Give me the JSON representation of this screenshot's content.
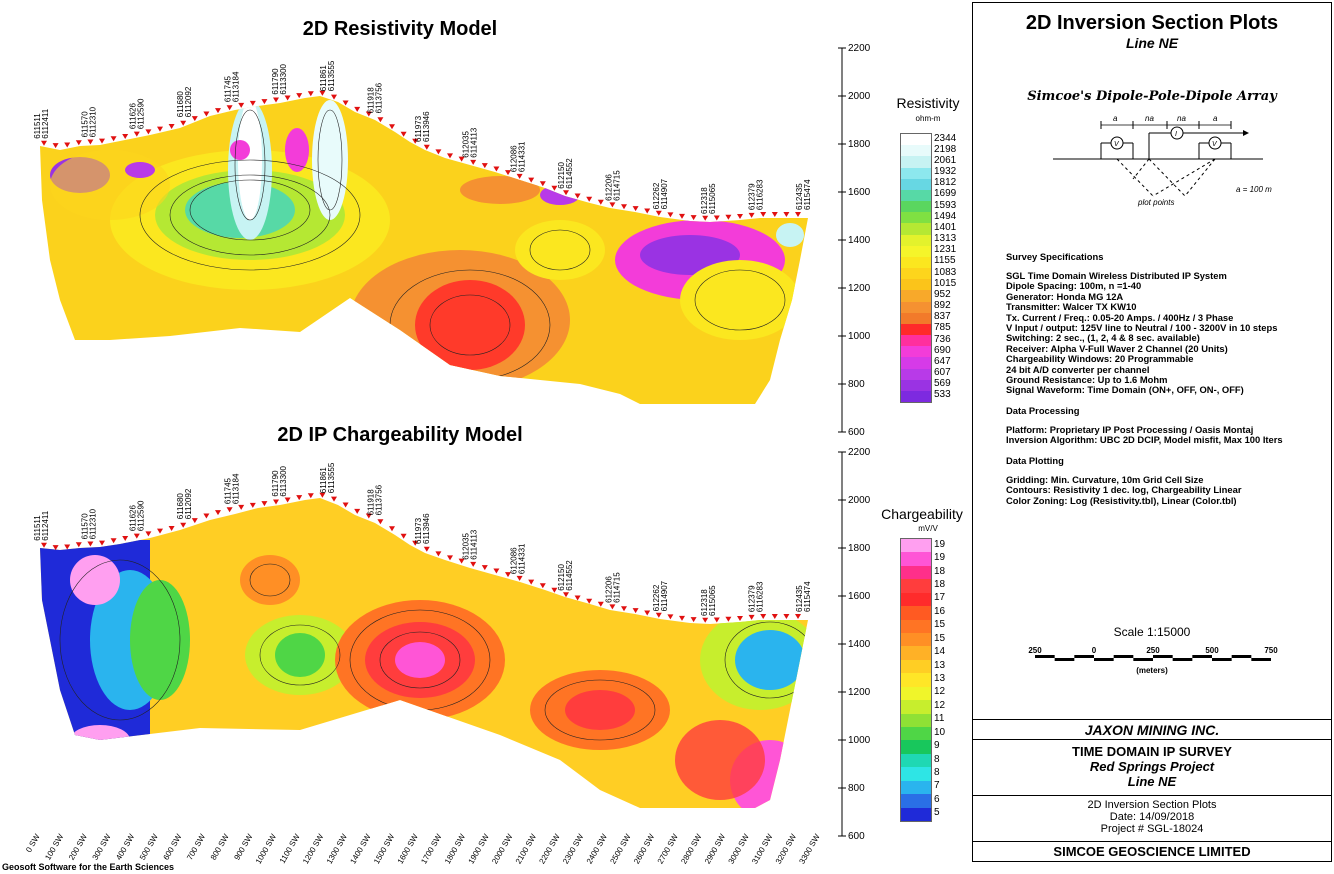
{
  "resistivity": {
    "title": "2D Resistivity Model",
    "legend_title": "Resistivity",
    "legend_unit": "ohm-m",
    "legend_values": [
      "2344",
      "2198",
      "2061",
      "1932",
      "1812",
      "1699",
      "1593",
      "1494",
      "1401",
      "1313",
      "1231",
      "1155",
      "1083",
      "1015",
      "952",
      "892",
      "837",
      "785",
      "736",
      "690",
      "647",
      "607",
      "569",
      "533"
    ],
    "legend_colors": [
      "#ffffff",
      "#e8fbfb",
      "#c7f3f3",
      "#8de8ee",
      "#67d7e3",
      "#57d9a6",
      "#5ad65f",
      "#7fe042",
      "#b5e833",
      "#e3f22c",
      "#f5f52a",
      "#fbe71f",
      "#fdd51c",
      "#fbc41a",
      "#f8a92a",
      "#f59131",
      "#f27a2a",
      "#ff2a2a",
      "#ff2f9e",
      "#f33cd9",
      "#d63ae8",
      "#b83ae8",
      "#9a33e3",
      "#7d2ae0"
    ],
    "elev_ticks": [
      "2200",
      "2000",
      "1800",
      "1600",
      "1400",
      "1200",
      "1000",
      "800",
      "600"
    ],
    "station_labels": [
      "611511 6112411",
      "611570 6112310",
      "611626 6112590",
      "611680 6112092",
      "611745 6113184",
      "611790 6113300",
      "611861 6113555",
      "611918 6113756",
      "611973 6113946",
      "612035 6114113",
      "612086 6114331",
      "612150 6114552",
      "612206 6114715",
      "612262 6114907",
      "612318 6115065",
      "612379 6116283",
      "612435 6115474"
    ]
  },
  "chargeability": {
    "title": "2D IP Chargeability Model",
    "legend_title": "Chargeability",
    "legend_unit": "mV/V",
    "legend_values": [
      "19",
      "19",
      "18",
      "18",
      "17",
      "16",
      "15",
      "15",
      "14",
      "13",
      "13",
      "12",
      "12",
      "11",
      "10",
      "9",
      "8",
      "8",
      "7",
      "6",
      "5"
    ],
    "legend_colors": [
      "#ff9ff0",
      "#ff55d6",
      "#ff2f8a",
      "#ff3d3d",
      "#ff2b2b",
      "#ff5a22",
      "#ff7424",
      "#ff8f25",
      "#ffb126",
      "#ffce24",
      "#ffe627",
      "#f0f52a",
      "#c7ee2d",
      "#8fe135",
      "#4fd646",
      "#18c75c",
      "#1fd8b3",
      "#2ee5e5",
      "#2ab4ee",
      "#2a6fe6",
      "#1f2ad8"
    ],
    "elev_ticks": [
      "2200",
      "2000",
      "1800",
      "1600",
      "1400",
      "1200",
      "1000",
      "800",
      "600"
    ],
    "station_labels": [
      "611511 6112411",
      "611570 6112310",
      "611626 6112590",
      "611680 6112092",
      "611745 6113184",
      "611790 6113300",
      "611861 6113555",
      "611918 6113756",
      "611973 6113946",
      "612035 6114113",
      "612086 6114331",
      "612150 6114552",
      "612206 6114715",
      "612262 6114907",
      "612318 6115065",
      "612379 6116283",
      "612435 6115474"
    ],
    "x_labels": [
      "0 SW",
      "100 SW",
      "200 SW",
      "300 SW",
      "400 SW",
      "500 SW",
      "600 SW",
      "700 SW",
      "800 SW",
      "900 SW",
      "1000 SW",
      "1100 SW",
      "1200 SW",
      "1300 SW",
      "1400 SW",
      "1500 SW",
      "1600 SW",
      "1700 SW",
      "1800 SW",
      "1900 SW",
      "2000 SW",
      "2100 SW",
      "2200 SW",
      "2300 SW",
      "2400 SW",
      "2500 SW",
      "2600 SW",
      "2700 SW",
      "2800 SW",
      "2900 SW",
      "3000 SW",
      "3100 SW",
      "3200 SW",
      "3300 SW"
    ]
  },
  "panel": {
    "title": "2D Inversion Section Plots",
    "subtitle": "Line NE",
    "array_title": "Simcoe's Dipole-Pole-Dipole Array",
    "array_labels": [
      "a",
      "na",
      "na",
      "a"
    ],
    "array_scale": "a = 100 m",
    "plot_points": "plot points",
    "specs_heading": "Survey Specifications",
    "specs": [
      "SGL Time Domain Wireless Distributed IP System",
      "Dipole Spacing: 100m, n =1-40",
      "Generator: Honda MG 12A",
      "Transmitter: Walcer TX KW10",
      "Tx. Current / Freq.: 0.05-20 Amps. / 400Hz / 3 Phase",
      "V Input / output: 125V line to Neutral / 100 - 3200V in 10 steps",
      "Switching: 2 sec., (1, 2, 4 & 8 sec. available)",
      "Receiver: Alpha V-Full Waver 2 Channel (20 Units)",
      "Chargeability Windows: 20 Programmable",
      "24 bit A/D converter per channel",
      "Ground Resistance: Up to 1.6 Mohm",
      "Signal Waveform: Time Domain (ON+, OFF, ON-, OFF)"
    ],
    "processing_heading": "Data Processing",
    "processing": [
      "Platform: Proprietary IP Post Processing / Oasis Montaj",
      "Inversion Algorithm: UBC 2D DCIP, Model misfit, Max 100 Iters"
    ],
    "plotting_heading": "Data Plotting",
    "plotting": [
      "Gridding: Min. Curvature, 10m Grid Cell Size",
      "Contours: Resistivity 1 dec. log, Chargeability Linear",
      "Color Zoning: Log (Resistivity.tbl), Linear (Color.tbl)"
    ],
    "scale_label": "Scale 1:15000",
    "scale_ticks": [
      "250",
      "0",
      "250",
      "500",
      "750"
    ],
    "scale_unit": "(meters)",
    "company": "JAXON MINING INC.",
    "survey_type": "TIME DOMAIN IP SURVEY",
    "project": "Red Springs Project",
    "line": "Line NE",
    "plot_title": "2D Inversion Section Plots",
    "date": "Date: 14/09/2018",
    "project_no": "Project # SGL-18024",
    "firm": "SIMCOE GEOSCIENCE LIMITED"
  },
  "footer": "Geosoft Software for the Earth Sciences"
}
